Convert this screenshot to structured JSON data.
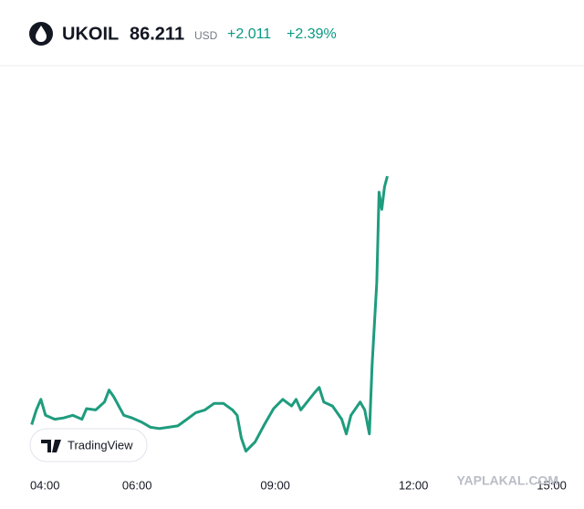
{
  "header": {
    "symbol": "UKOIL",
    "price": 86.211,
    "currency": "USD",
    "change": "+2.011",
    "change_percent": "+2.39%"
  },
  "badge": "TradingView",
  "watermark": "YAPLAKAL.COM",
  "chart_data": {
    "type": "line",
    "x": [
      3.99,
      4.09,
      4.19,
      4.29,
      4.49,
      4.68,
      4.88,
      5.08,
      5.18,
      5.38,
      5.57,
      5.67,
      5.77,
      5.99,
      6.17,
      6.37,
      6.57,
      6.76,
      6.96,
      7.16,
      7.36,
      7.55,
      7.75,
      7.95,
      8.15,
      8.35,
      8.45,
      8.54,
      8.64,
      8.84,
      9.04,
      9.24,
      9.44,
      9.63,
      9.73,
      9.83,
      10.13,
      10.23,
      10.33,
      10.52,
      10.72,
      10.82,
      10.92,
      11.12,
      11.22,
      11.32,
      11.38,
      11.48,
      11.53,
      11.59,
      11.65,
      11.71
    ],
    "series": [
      {
        "color": "#1e9c7e",
        "values": [
          84.34,
          84.45,
          84.53,
          84.41,
          84.38,
          84.39,
          84.41,
          84.38,
          84.46,
          84.45,
          84.51,
          84.6,
          84.55,
          84.41,
          84.39,
          84.36,
          84.32,
          84.31,
          84.32,
          84.33,
          84.38,
          84.43,
          84.45,
          84.5,
          84.5,
          84.45,
          84.41,
          84.24,
          84.14,
          84.21,
          84.34,
          84.46,
          84.53,
          84.48,
          84.53,
          84.45,
          84.58,
          84.62,
          84.51,
          84.48,
          84.38,
          84.27,
          84.41,
          84.51,
          84.45,
          84.27,
          84.79,
          85.41,
          86.09,
          85.96,
          86.13,
          86.21
        ]
      }
    ],
    "xlim": [
      3.5,
      15.9
    ],
    "ylim": [
      84.0,
      87.0
    ],
    "xticks": [
      {
        "value": 4,
        "label": "04:00"
      },
      {
        "value": 6,
        "label": "06:00"
      },
      {
        "value": 9,
        "label": "09:00"
      },
      {
        "value": 12,
        "label": "12:00"
      },
      {
        "value": 15,
        "label": "15:00"
      }
    ]
  }
}
